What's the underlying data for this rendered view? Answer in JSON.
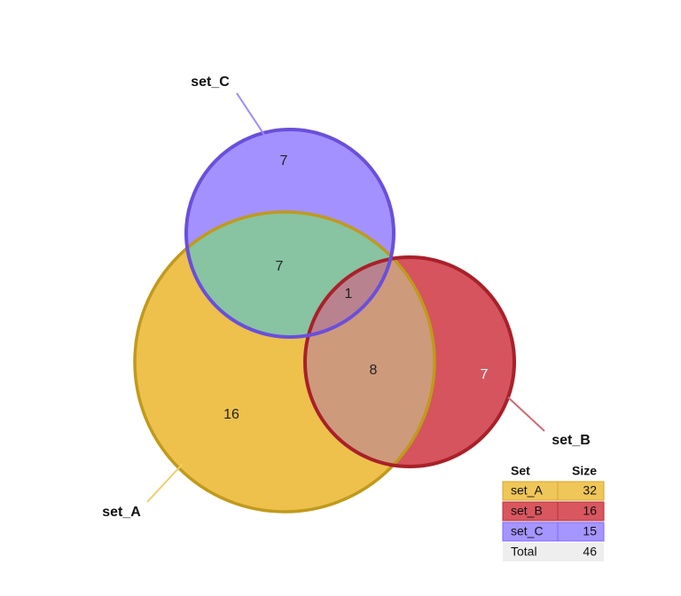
{
  "sets": [
    {
      "name": "set_A",
      "size": 32,
      "color": "#E8B21E"
    },
    {
      "name": "set_B",
      "size": 16,
      "color": "#C9242F"
    },
    {
      "name": "set_C",
      "size": 15,
      "color": "#7F66FF"
    }
  ],
  "regions": {
    "a_only": "16",
    "b_only": "7",
    "c_only": "7",
    "a_c": "7",
    "a_b": "8",
    "a_b_c": "1"
  },
  "table": {
    "header_set": "Set",
    "header_size": "Size",
    "rows": [
      {
        "set": "set_A",
        "size": "32"
      },
      {
        "set": "set_B",
        "size": "16"
      },
      {
        "set": "set_C",
        "size": "15"
      }
    ],
    "total_label": "Total",
    "total_value": "46"
  },
  "colors": {
    "set_A_fill": "#E8B21E",
    "set_A_stroke": "#C09A1C",
    "set_B_fill": "#C9242F",
    "set_B_stroke": "#A9202A",
    "set_C_fill": "#7F66FF",
    "set_C_stroke": "#6A4FDB",
    "total_row": "#EEEEEE"
  }
}
